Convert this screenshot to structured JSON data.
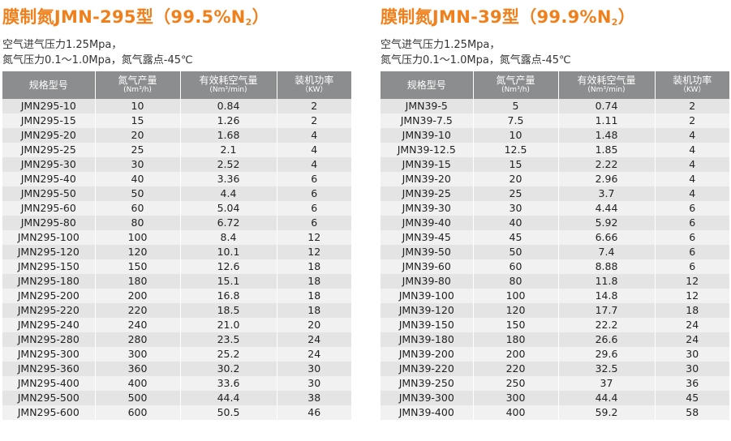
{
  "left": {
    "title_main": "膜制氮JMN-295型（99.5%N",
    "title_sub": "2",
    "title_end": "）",
    "desc_line1": "空气进气压力1.25Mpa，",
    "desc_line2": "氮气压力0.1～1.0Mpa，氮气露点-45℃",
    "headers": [
      {
        "label": "规格型号",
        "unit": ""
      },
      {
        "label": "氮气产量",
        "unit": "(Nm³/h)"
      },
      {
        "label": "有效耗空气量",
        "unit": "(Nm³/min)"
      },
      {
        "label": "装机功率",
        "unit": "（KW）"
      }
    ],
    "rows": [
      [
        "JMN295-10",
        "10",
        "0.84",
        "2"
      ],
      [
        "JMN295-15",
        "15",
        "1.26",
        "2"
      ],
      [
        "JMN295-20",
        "20",
        "1.68",
        "4"
      ],
      [
        "JMN295-25",
        "25",
        "2.1",
        "4"
      ],
      [
        "JMN295-30",
        "30",
        "2.52",
        "4"
      ],
      [
        "JMN295-40",
        "40",
        "3.36",
        "6"
      ],
      [
        "JMN295-50",
        "50",
        "4.4",
        "6"
      ],
      [
        "JMN295-60",
        "60",
        "5.04",
        "6"
      ],
      [
        "JMN295-80",
        "80",
        "6.72",
        "6"
      ],
      [
        "JMN295-100",
        "100",
        "8.4",
        "12"
      ],
      [
        "JMN295-120",
        "120",
        "10.1",
        "12"
      ],
      [
        "JMN295-150",
        "150",
        "12.6",
        "18"
      ],
      [
        "JMN295-180",
        "180",
        "15.1",
        "18"
      ],
      [
        "JMN295-200",
        "200",
        "16.8",
        "18"
      ],
      [
        "JMN295-220",
        "220",
        "18.5",
        "18"
      ],
      [
        "JMN295-240",
        "240",
        "21.0",
        "20"
      ],
      [
        "JMN295-280",
        "280",
        "23.5",
        "24"
      ],
      [
        "JMN295-300",
        "300",
        "25.2",
        "24"
      ],
      [
        "JMN295-360",
        "360",
        "30.2",
        "30"
      ],
      [
        "JMN295-400",
        "400",
        "33.6",
        "30"
      ],
      [
        "JMN295-500",
        "500",
        "44.4",
        "38"
      ],
      [
        "JMN295-600",
        "600",
        "50.5",
        "46"
      ]
    ]
  },
  "right": {
    "title_main": "膜制氮JMN-39型（99.9%N",
    "title_sub": "2",
    "title_end": "）",
    "desc_line1": "空气进气压力1.25Mpa，",
    "desc_line2": "氮气压力0.1～1.0Mpa，氮气露点-45℃",
    "headers": [
      {
        "label": "规格型号",
        "unit": ""
      },
      {
        "label": "氮气产量",
        "unit": "(Nm³/h)"
      },
      {
        "label": "有效耗空气量",
        "unit": "(Nm³/min)"
      },
      {
        "label": "装机功率",
        "unit": "（KW）"
      }
    ],
    "rows": [
      [
        "JMN39-5",
        "5",
        "0.74",
        "2"
      ],
      [
        "JMN39-7.5",
        "7.5",
        "1.11",
        "2"
      ],
      [
        "JMN39-10",
        "10",
        "1.48",
        "4"
      ],
      [
        "JMN39-12.5",
        "12.5",
        "1.85",
        "4"
      ],
      [
        "JMN39-15",
        "15",
        "2.22",
        "4"
      ],
      [
        "JMN39-20",
        "20",
        "2.96",
        "4"
      ],
      [
        "JMN39-25",
        "25",
        "3.7",
        "4"
      ],
      [
        "JMN39-30",
        "30",
        "4.44",
        "6"
      ],
      [
        "JMN39-40",
        "40",
        "5.92",
        "6"
      ],
      [
        "JMN39-45",
        "45",
        "6.66",
        "6"
      ],
      [
        "JMN39-50",
        "50",
        "7.4",
        "6"
      ],
      [
        "JMN39-60",
        "60",
        "8.88",
        "6"
      ],
      [
        "JMN39-80",
        "80",
        "11.8",
        "12"
      ],
      [
        "JMN39-100",
        "100",
        "14.8",
        "12"
      ],
      [
        "JMN39-120",
        "120",
        "17.7",
        "18"
      ],
      [
        "JMN39-150",
        "150",
        "22.2",
        "24"
      ],
      [
        "JMN39-180",
        "180",
        "26.6",
        "24"
      ],
      [
        "JMN39-200",
        "200",
        "29.6",
        "30"
      ],
      [
        "JMN39-220",
        "220",
        "32.5",
        "30"
      ],
      [
        "JMN39-250",
        "250",
        "37",
        "36"
      ],
      [
        "JMN39-300",
        "300",
        "44.4",
        "45"
      ],
      [
        "JMN39-400",
        "400",
        "59.2",
        "58"
      ]
    ]
  }
}
